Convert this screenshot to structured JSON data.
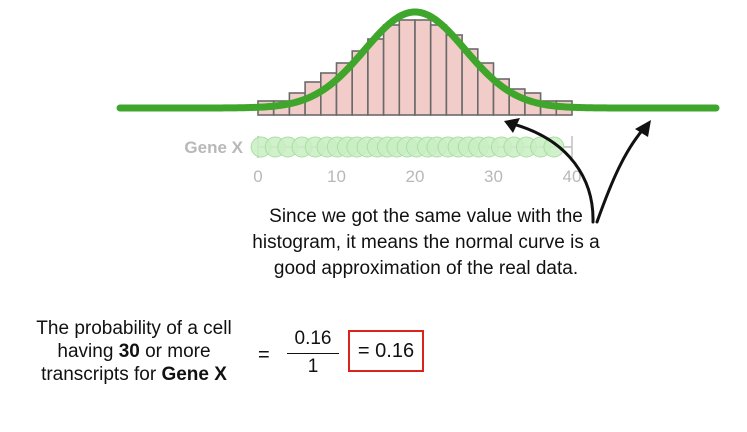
{
  "chart_data": {
    "type": "bar",
    "ylabel": "Gene X",
    "xlim": [
      0,
      40
    ],
    "x_ticks": [
      "0",
      "10",
      "20",
      "30",
      "40"
    ],
    "bins": [
      {
        "x": 0,
        "value": 0.14
      },
      {
        "x": 2,
        "value": 0.14
      },
      {
        "x": 4,
        "value": 0.22
      },
      {
        "x": 6,
        "value": 0.33
      },
      {
        "x": 8,
        "value": 0.42
      },
      {
        "x": 10,
        "value": 0.52
      },
      {
        "x": 12,
        "value": 0.64
      },
      {
        "x": 14,
        "value": 0.76
      },
      {
        "x": 16,
        "value": 0.9
      },
      {
        "x": 18,
        "value": 0.95
      },
      {
        "x": 20,
        "value": 0.95
      },
      {
        "x": 22,
        "value": 0.9
      },
      {
        "x": 24,
        "value": 0.8
      },
      {
        "x": 26,
        "value": 0.66
      },
      {
        "x": 28,
        "value": 0.52
      },
      {
        "x": 30,
        "value": 0.36
      },
      {
        "x": 32,
        "value": 0.26
      },
      {
        "x": 34,
        "value": 0.22
      },
      {
        "x": 36,
        "value": 0.14
      },
      {
        "x": 38,
        "value": 0.14
      }
    ],
    "bin_width": 2,
    "normal_curve": {
      "mean": 20,
      "sd": 6.4
    },
    "points_x": [
      0.4,
      2.2,
      3.8,
      5.6,
      7.3,
      8.8,
      10.1,
      11.4,
      12.6,
      13.9,
      15.2,
      16.5,
      17.7,
      19.0,
      20.2,
      21.6,
      22.8,
      24.2,
      25.5,
      26.8,
      28.1,
      29.4,
      31.0,
      32.6,
      34.2,
      36.0,
      37.7
    ],
    "colors": {
      "curve": "#3fa62c",
      "bar_fill": "#f2ccc8",
      "bar_stroke": "#6a6a6a",
      "points": "#c9eec3",
      "arrows": "#111111",
      "highlight_box": "#d8241c"
    }
  },
  "explanation": {
    "line1": "Since we got the same value with the",
    "line2": "histogram, it means the normal curve is a",
    "line3": "good approximation of the real data."
  },
  "probability": {
    "text_1": "The probability of a cell",
    "text_2a": "having ",
    "text_2b": "30",
    "text_2c": " or more",
    "text_3a": "transcripts for ",
    "text_3b": "Gene X",
    "equals": "=",
    "numerator": "0.16",
    "denominator": "1",
    "result": "= 0.16"
  }
}
